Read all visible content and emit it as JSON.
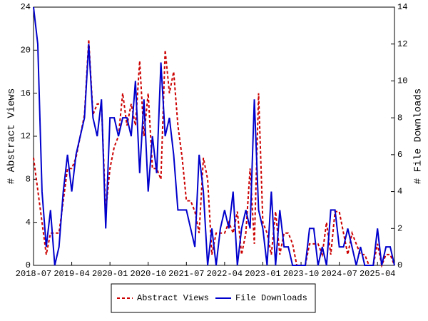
{
  "chart_data": {
    "type": "line",
    "x": [
      "2018-07",
      "2018-08",
      "2018-09",
      "2018-10",
      "2018-11",
      "2018-12",
      "2019-01",
      "2019-02",
      "2019-03",
      "2019-04",
      "2019-05",
      "2019-06",
      "2019-07",
      "2019-08",
      "2019-09",
      "2019-10",
      "2019-11",
      "2019-12",
      "2020-01",
      "2020-02",
      "2020-03",
      "2020-04",
      "2020-05",
      "2020-06",
      "2020-07",
      "2020-08",
      "2020-09",
      "2020-10",
      "2020-11",
      "2020-12",
      "2021-01",
      "2021-02",
      "2021-03",
      "2021-04",
      "2021-05",
      "2021-06",
      "2021-07",
      "2021-08",
      "2021-09",
      "2021-10",
      "2021-11",
      "2021-12",
      "2022-01",
      "2022-02",
      "2022-03",
      "2022-04",
      "2022-05",
      "2022-06",
      "2022-07",
      "2022-08",
      "2022-09",
      "2022-10",
      "2022-11",
      "2022-12",
      "2023-01",
      "2023-02",
      "2023-03",
      "2023-04",
      "2023-05",
      "2023-06",
      "2023-07",
      "2023-08",
      "2023-09",
      "2023-10",
      "2023-11",
      "2023-12",
      "2024-01",
      "2024-02",
      "2024-03",
      "2024-04",
      "2024-05",
      "2024-06",
      "2024-07",
      "2024-08",
      "2024-09",
      "2024-10",
      "2024-11",
      "2024-12",
      "2025-01",
      "2025-02",
      "2025-03",
      "2025-04",
      "2025-05",
      "2025-06",
      "2025-07",
      "2025-08"
    ],
    "xticks": [
      "2018-07",
      "2019-04",
      "2020-01",
      "2020-10",
      "2021-07",
      "2022-04",
      "2023-01",
      "2023-10",
      "2024-07",
      "2025-04"
    ],
    "ylabel": "# Abstract Views",
    "y2label": "# File Downloads",
    "ylim": [
      0,
      24
    ],
    "yticks": [
      0,
      4,
      8,
      12,
      16,
      20,
      24
    ],
    "y2lim": [
      0,
      14
    ],
    "y2ticks": [
      0,
      2,
      4,
      6,
      8,
      10,
      12,
      14
    ],
    "series": [
      {
        "name": "Abstract Views",
        "color": "#cc0000",
        "dashed": true,
        "axis": "y",
        "values": [
          10,
          7,
          4,
          1,
          3,
          3,
          3,
          6,
          9,
          9,
          10,
          12,
          14,
          21,
          14,
          15,
          15,
          5,
          9,
          11,
          12,
          16,
          13,
          15,
          13,
          19,
          12,
          16,
          9,
          9,
          8,
          20,
          16,
          18,
          13,
          10,
          6,
          6,
          5,
          3,
          10,
          8,
          1,
          3,
          3,
          3,
          4,
          3,
          5,
          1,
          3,
          9,
          2,
          16,
          4,
          3,
          1,
          5,
          1,
          3,
          3,
          2,
          0,
          0,
          0,
          2,
          2,
          2,
          1,
          4,
          1,
          5,
          5,
          3,
          1,
          3,
          2,
          1,
          1,
          0,
          0,
          2,
          0,
          1,
          1,
          0
        ]
      },
      {
        "name": "File Downloads",
        "color": "#0000cc",
        "dashed": false,
        "axis": "y2",
        "values": [
          14,
          12,
          4,
          1,
          3,
          0,
          1,
          4,
          6,
          4,
          6,
          7,
          8,
          12,
          8,
          7,
          9,
          2,
          8,
          8,
          7,
          8,
          8,
          7,
          10,
          5,
          9,
          4,
          7,
          5,
          11,
          7,
          8,
          6,
          3,
          3,
          3,
          2,
          1,
          6,
          4,
          0,
          2,
          0,
          2,
          3,
          2,
          4,
          0,
          2,
          3,
          2,
          9,
          3,
          2,
          0,
          4,
          0,
          3,
          1,
          1,
          0,
          0,
          0,
          0,
          2,
          2,
          0,
          1,
          0,
          3,
          3,
          1,
          1,
          2,
          1,
          0,
          1,
          0,
          0,
          0,
          2,
          0,
          1,
          1,
          0
        ]
      }
    ]
  }
}
